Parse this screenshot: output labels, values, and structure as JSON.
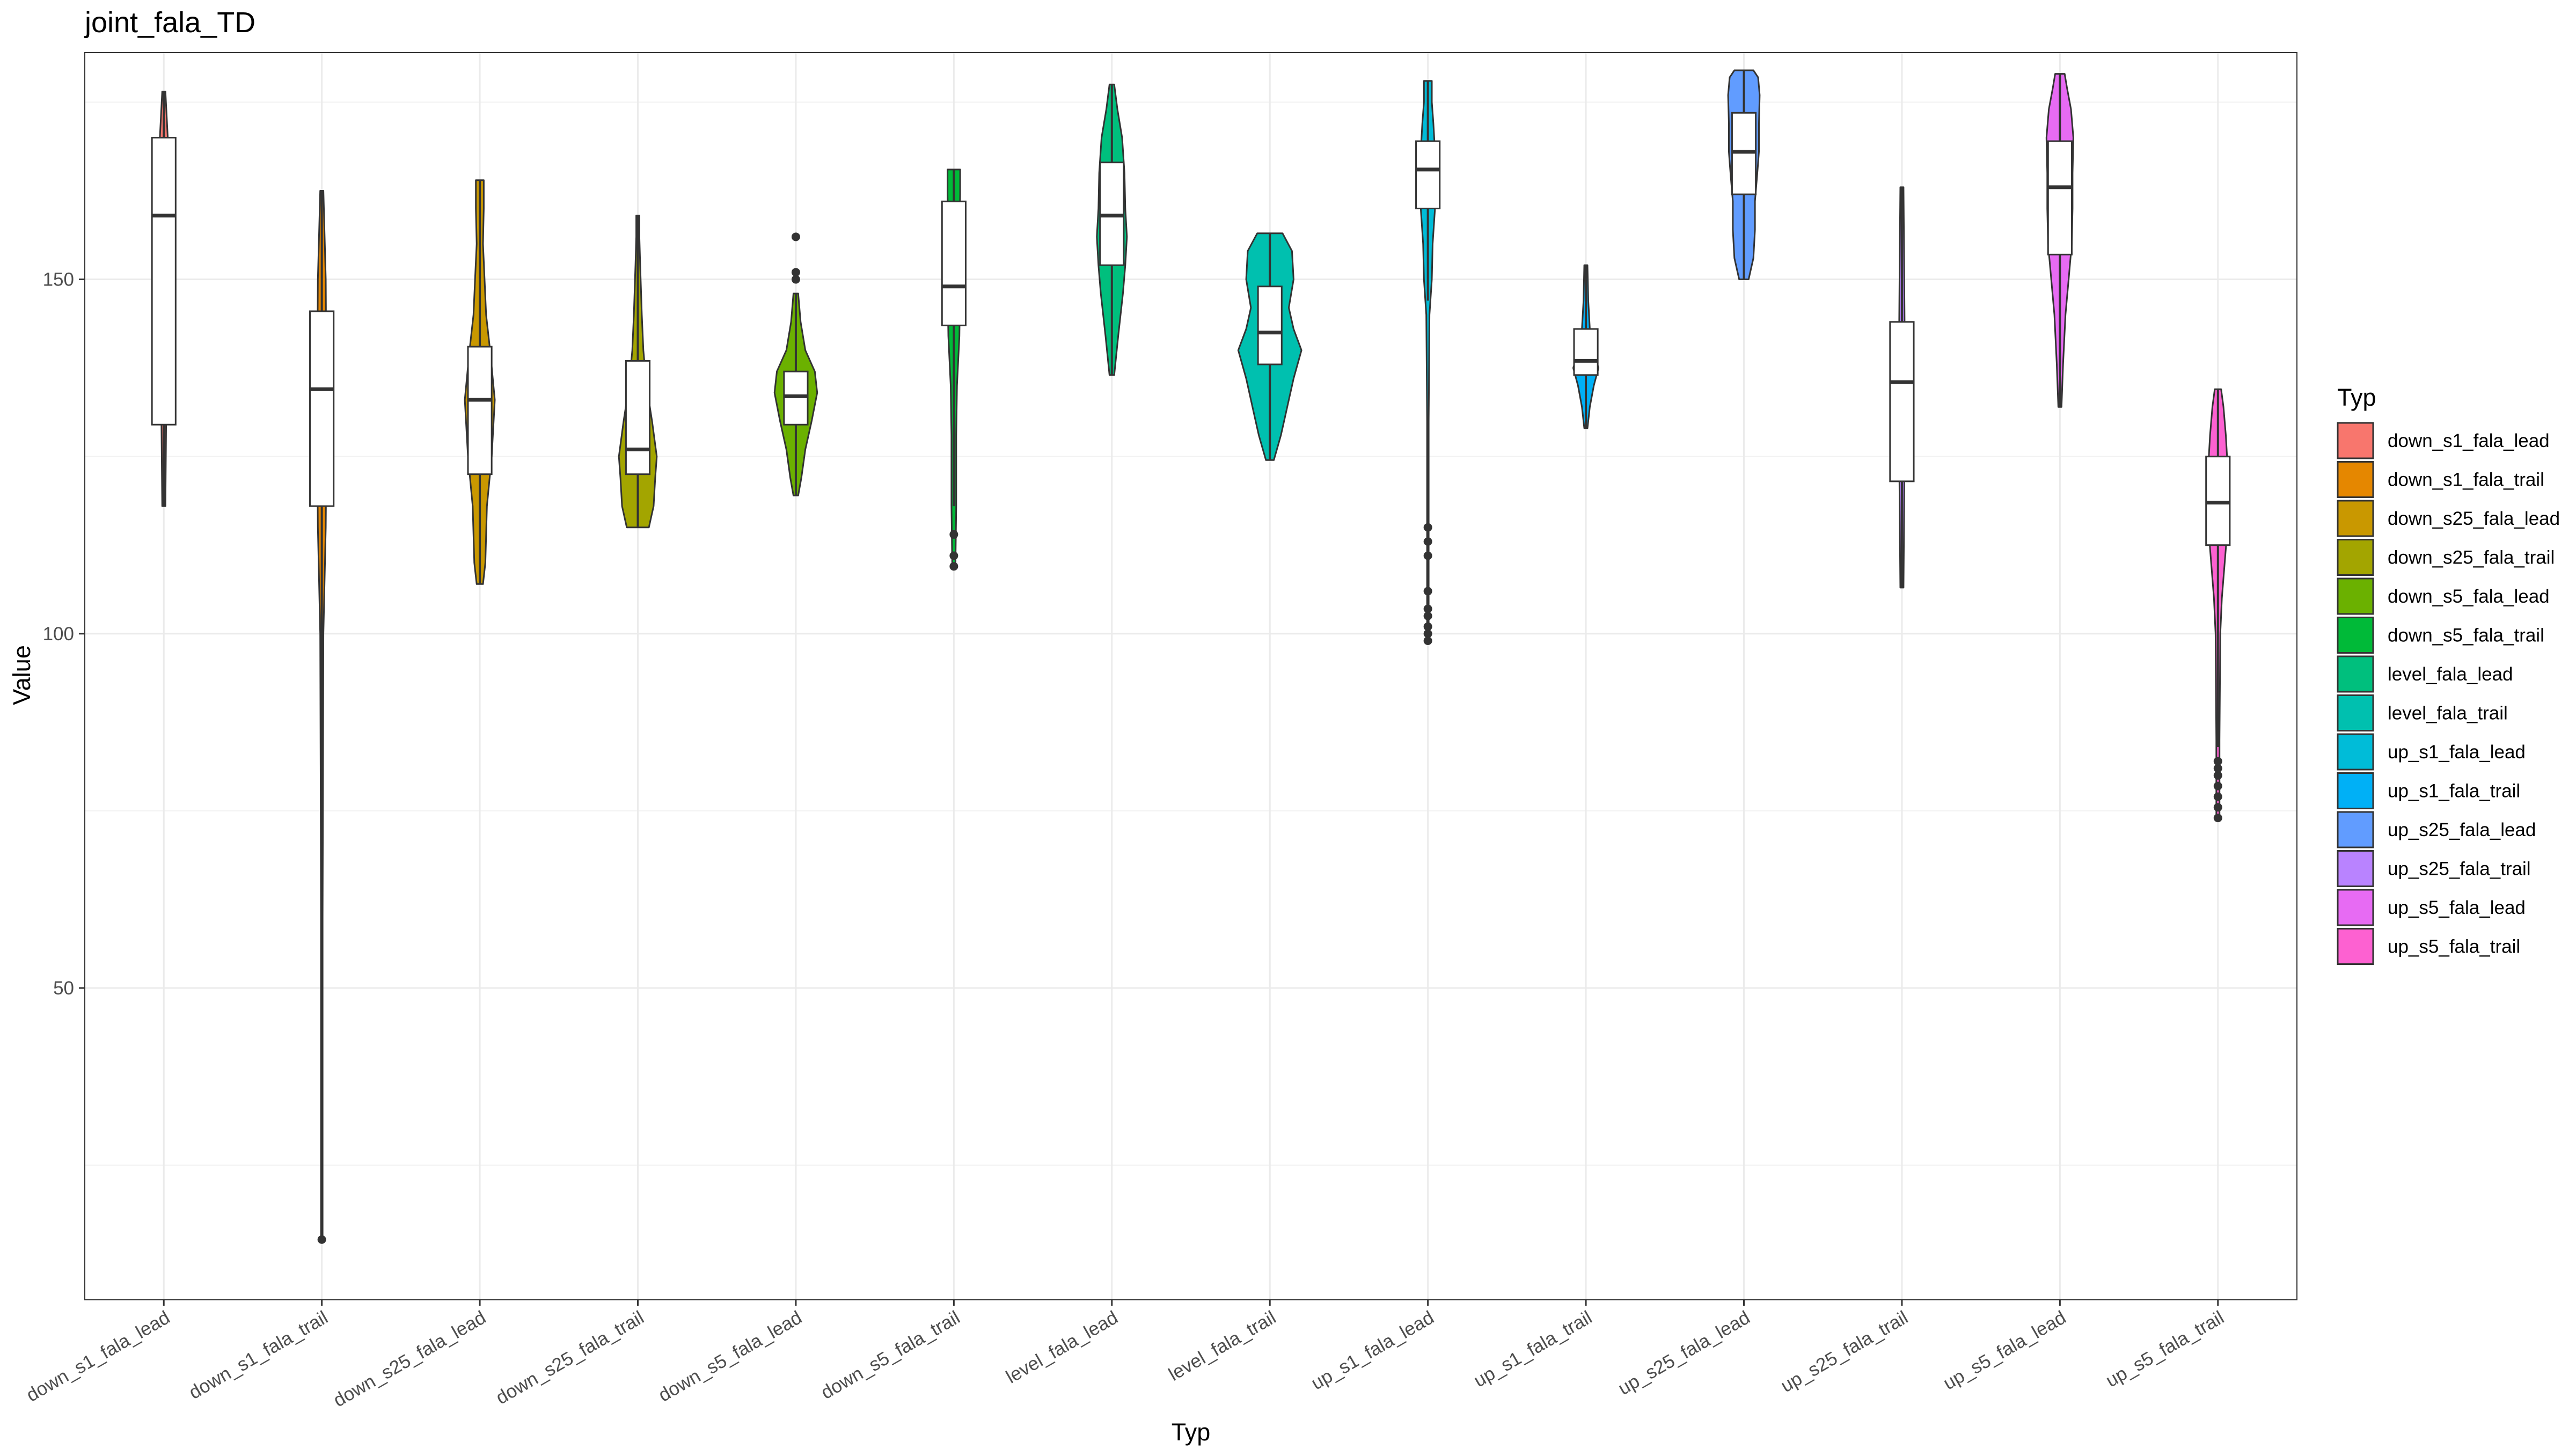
{
  "chart_data": {
    "type": "violin",
    "title": "joint_fala_TD",
    "xlabel": "Typ",
    "ylabel": "Value",
    "ylim": [
      6,
      182
    ],
    "yticks": [
      50,
      100,
      150
    ],
    "grid": true,
    "legend": {
      "title": "Typ",
      "position": "right"
    },
    "categories": [
      "down_s1_fala_lead",
      "down_s1_fala_trail",
      "down_s25_fala_lead",
      "down_s25_fala_trail",
      "down_s5_fala_lead",
      "down_s5_fala_trail",
      "level_fala_lead",
      "level_fala_trail",
      "up_s1_fala_lead",
      "up_s1_fala_trail",
      "up_s25_fala_lead",
      "up_s25_fala_trail",
      "up_s5_fala_lead",
      "up_s5_fala_trail"
    ],
    "colors": [
      "#F8766D",
      "#E58700",
      "#C99800",
      "#A3A500",
      "#6BB100",
      "#00BA38",
      "#00BF7D",
      "#00C0AF",
      "#00BCD8",
      "#00B0F6",
      "#619CFF",
      "#B983FF",
      "#E76BF3",
      "#FD61D1"
    ],
    "series": [
      {
        "name": "down_s1_fala_lead",
        "min": 118,
        "q1": 129.5,
        "median": 159,
        "q3": 170,
        "max": 176.5,
        "outliers": [],
        "violin": [
          [
            118,
            0.02
          ],
          [
            130,
            0.03
          ],
          [
            145,
            0.03
          ],
          [
            160,
            0.04
          ],
          [
            170,
            0.05
          ],
          [
            176.5,
            0.02
          ]
        ]
      },
      {
        "name": "down_s1_fala_trail",
        "min": 15,
        "q1": 118,
        "median": 134.5,
        "q3": 145.5,
        "max": 162.5,
        "outliers": [
          14.5
        ],
        "violin": [
          [
            15,
            0.01
          ],
          [
            60,
            0.01
          ],
          [
            100,
            0.02
          ],
          [
            115,
            0.05
          ],
          [
            130,
            0.06
          ],
          [
            150,
            0.05
          ],
          [
            162.5,
            0.02
          ]
        ]
      },
      {
        "name": "down_s25_fala_lead",
        "min": 107,
        "q1": 122.5,
        "median": 133,
        "q3": 140.5,
        "max": 164,
        "outliers": [],
        "violin": [
          [
            107,
            0.04
          ],
          [
            110,
            0.07
          ],
          [
            118,
            0.09
          ],
          [
            125,
            0.15
          ],
          [
            133,
            0.19
          ],
          [
            140,
            0.13
          ],
          [
            145,
            0.08
          ],
          [
            150,
            0.06
          ],
          [
            155,
            0.04
          ],
          [
            160,
            0.05
          ],
          [
            164,
            0.05
          ]
        ]
      },
      {
        "name": "down_s25_fala_trail",
        "min": 115,
        "q1": 122.5,
        "median": 126,
        "q3": 138.5,
        "max": 159,
        "outliers": [],
        "violin": [
          [
            115,
            0.14
          ],
          [
            118,
            0.2
          ],
          [
            122,
            0.22
          ],
          [
            125,
            0.24
          ],
          [
            130,
            0.18
          ],
          [
            135,
            0.11
          ],
          [
            140,
            0.07
          ],
          [
            145,
            0.05
          ],
          [
            152,
            0.03
          ],
          [
            156,
            0.02
          ],
          [
            159,
            0.02
          ]
        ]
      },
      {
        "name": "down_s5_fala_lead",
        "min": 119.5,
        "q1": 129.5,
        "median": 133.5,
        "q3": 137,
        "max": 148,
        "outliers": [
          150,
          151,
          156
        ],
        "violin": [
          [
            119.5,
            0.03
          ],
          [
            122,
            0.07
          ],
          [
            126,
            0.12
          ],
          [
            130,
            0.2
          ],
          [
            134,
            0.27
          ],
          [
            137,
            0.24
          ],
          [
            140,
            0.12
          ],
          [
            144,
            0.06
          ],
          [
            148,
            0.03
          ]
        ]
      },
      {
        "name": "down_s5_fala_trail",
        "min": 118,
        "q1": 143.5,
        "median": 149,
        "q3": 161,
        "max": 165.5,
        "outliers": [
          109.5,
          111,
          114
        ],
        "violin": [
          [
            109.5,
            0.02
          ],
          [
            118,
            0.03
          ],
          [
            128,
            0.03
          ],
          [
            135,
            0.04
          ],
          [
            142,
            0.07
          ],
          [
            150,
            0.08
          ],
          [
            156,
            0.07
          ],
          [
            162,
            0.08
          ],
          [
            165.5,
            0.08
          ]
        ]
      },
      {
        "name": "level_fala_lead",
        "min": 136.5,
        "q1": 152,
        "median": 159,
        "q3": 166.5,
        "max": 177.5,
        "outliers": [],
        "violin": [
          [
            136.5,
            0.03
          ],
          [
            142,
            0.08
          ],
          [
            148,
            0.14
          ],
          [
            152,
            0.17
          ],
          [
            156,
            0.19
          ],
          [
            160,
            0.17
          ],
          [
            165,
            0.16
          ],
          [
            170,
            0.13
          ],
          [
            174,
            0.07
          ],
          [
            177.5,
            0.03
          ]
        ]
      },
      {
        "name": "level_fala_trail",
        "min": 124.5,
        "q1": 138,
        "median": 142.5,
        "q3": 149,
        "max": 156.5,
        "outliers": [],
        "violin": [
          [
            124.5,
            0.05
          ],
          [
            128,
            0.14
          ],
          [
            132,
            0.22
          ],
          [
            136,
            0.3
          ],
          [
            140,
            0.4
          ],
          [
            143,
            0.3
          ],
          [
            146,
            0.24
          ],
          [
            150,
            0.3
          ],
          [
            154,
            0.28
          ],
          [
            156.5,
            0.16
          ]
        ]
      },
      {
        "name": "up_s1_fala_lead",
        "min": 147,
        "q1": 160,
        "median": 165.5,
        "q3": 169.5,
        "max": 178,
        "outliers": [
          99,
          100,
          101,
          102.5,
          103.5,
          106,
          111,
          113,
          115
        ],
        "violin": [
          [
            99,
            0.01
          ],
          [
            110,
            0.01
          ],
          [
            130,
            0.01
          ],
          [
            145,
            0.02
          ],
          [
            150,
            0.05
          ],
          [
            155,
            0.06
          ],
          [
            160,
            0.09
          ],
          [
            165,
            0.12
          ],
          [
            168,
            0.09
          ],
          [
            172,
            0.07
          ],
          [
            175,
            0.05
          ],
          [
            178,
            0.05
          ]
        ]
      },
      {
        "name": "up_s1_fala_trail",
        "min": 129,
        "q1": 136.5,
        "median": 138.5,
        "q3": 143,
        "max": 152,
        "outliers": [],
        "violin": [
          [
            129,
            0.02
          ],
          [
            132,
            0.05
          ],
          [
            135,
            0.1
          ],
          [
            137.5,
            0.16
          ],
          [
            140,
            0.09
          ],
          [
            143,
            0.05
          ],
          [
            147,
            0.03
          ],
          [
            152,
            0.02
          ]
        ]
      },
      {
        "name": "up_s25_fala_lead",
        "min": 150,
        "q1": 162,
        "median": 168,
        "q3": 173.5,
        "max": 179.5,
        "outliers": [],
        "violin": [
          [
            150,
            0.06
          ],
          [
            153,
            0.12
          ],
          [
            157,
            0.14
          ],
          [
            161,
            0.14
          ],
          [
            165,
            0.17
          ],
          [
            168,
            0.19
          ],
          [
            172,
            0.19
          ],
          [
            176,
            0.2
          ],
          [
            178.5,
            0.18
          ],
          [
            179.5,
            0.12
          ]
        ]
      },
      {
        "name": "up_s25_fala_trail",
        "min": 106.5,
        "q1": 121.5,
        "median": 135.5,
        "q3": 144,
        "max": 163,
        "outliers": [],
        "violin": [
          [
            106.5,
            0.02
          ],
          [
            120,
            0.03
          ],
          [
            135,
            0.04
          ],
          [
            150,
            0.03
          ],
          [
            163,
            0.02
          ]
        ]
      },
      {
        "name": "up_s5_fala_lead",
        "min": 132,
        "q1": 153.5,
        "median": 163,
        "q3": 169.5,
        "max": 179,
        "outliers": [],
        "violin": [
          [
            132,
            0.02
          ],
          [
            138,
            0.04
          ],
          [
            145,
            0.07
          ],
          [
            150,
            0.11
          ],
          [
            155,
            0.15
          ],
          [
            160,
            0.16
          ],
          [
            165,
            0.16
          ],
          [
            170,
            0.17
          ],
          [
            174,
            0.14
          ],
          [
            177,
            0.09
          ],
          [
            179,
            0.06
          ]
        ]
      },
      {
        "name": "up_s5_fala_trail",
        "min": 84,
        "q1": 112.5,
        "median": 118.5,
        "q3": 125,
        "max": 134.5,
        "outliers": [
          74,
          75.5,
          77,
          78.5,
          80,
          81,
          82
        ],
        "violin": [
          [
            74,
            0.02
          ],
          [
            85,
            0.02
          ],
          [
            100,
            0.03
          ],
          [
            105,
            0.05
          ],
          [
            112,
            0.1
          ],
          [
            118,
            0.14
          ],
          [
            124,
            0.12
          ],
          [
            128,
            0.1
          ],
          [
            132,
            0.07
          ],
          [
            134.5,
            0.04
          ]
        ]
      }
    ]
  }
}
